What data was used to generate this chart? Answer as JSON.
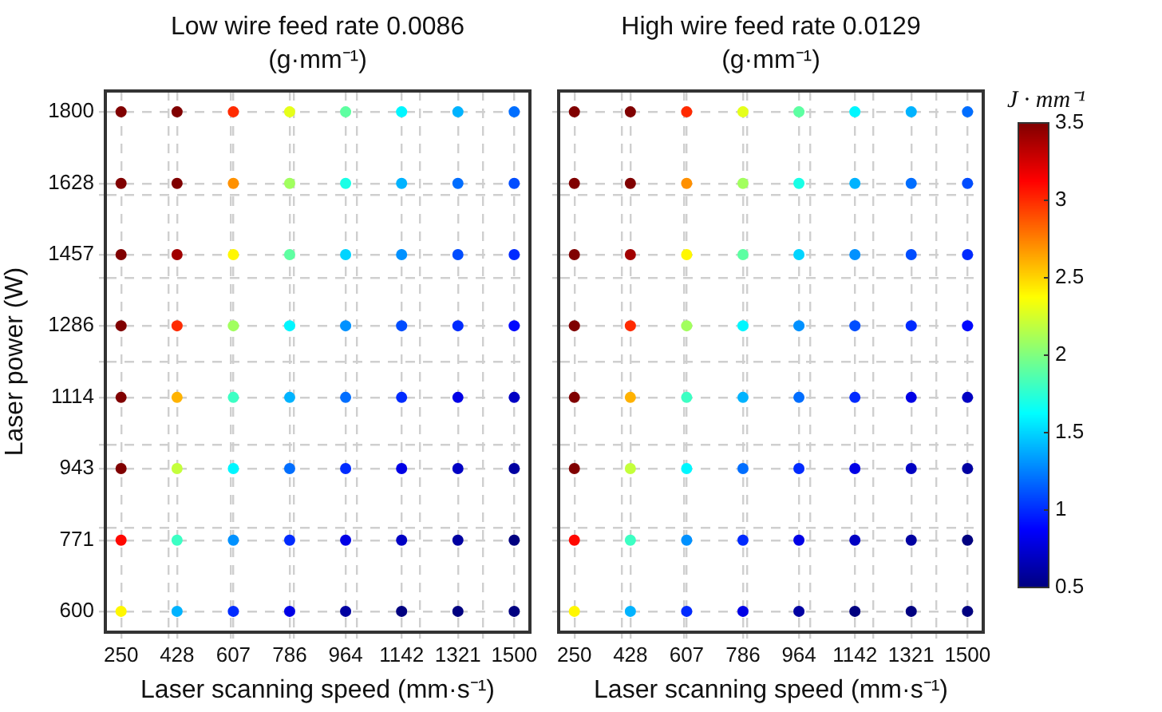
{
  "chart_data": [
    {
      "type": "scatter",
      "title": "Low wire feed rate 0.0086\n(g·mm⁻¹)",
      "xlabel": "Laser scanning speed (mm·s⁻¹)",
      "ylabel": "Laser power (W)",
      "marker": "circle",
      "grid": true,
      "xlim": [
        200,
        1550
      ],
      "xticks": [
        250,
        428,
        607,
        786,
        964,
        1142,
        1321,
        1500,
        {
          "value": 400,
          "label": null
        },
        {
          "value": 600,
          "label": null
        },
        {
          "value": 800,
          "label": null
        },
        {
          "value": 1000,
          "label": null
        },
        {
          "value": 1200,
          "label": null
        },
        {
          "value": 1400,
          "label": null
        }
      ],
      "ylim": [
        550,
        1850
      ],
      "yticks": [
        600,
        771,
        943,
        1114,
        1286,
        1457,
        1628,
        1800,
        {
          "value": 800,
          "label": null
        },
        {
          "value": 1000,
          "label": null
        },
        {
          "value": 1200,
          "label": null
        },
        {
          "value": 1400,
          "label": null
        },
        {
          "value": 1600,
          "label": null
        }
      ],
      "x": [
        250,
        250,
        250,
        250,
        250,
        250,
        250,
        250,
        428,
        428,
        428,
        428,
        428,
        428,
        428,
        428,
        607,
        607,
        607,
        607,
        607,
        607,
        607,
        607,
        786,
        786,
        786,
        786,
        786,
        786,
        786,
        786,
        964,
        964,
        964,
        964,
        964,
        964,
        964,
        964,
        1142,
        1142,
        1142,
        1142,
        1142,
        1142,
        1142,
        1142,
        1321,
        1321,
        1321,
        1321,
        1321,
        1321,
        1321,
        1321,
        1500,
        1500,
        1500,
        1500,
        1500,
        1500,
        1500,
        1500
      ],
      "values": [
        600,
        771,
        943,
        1114,
        1286,
        1457,
        1628,
        1800,
        600,
        771,
        943,
        1114,
        1286,
        1457,
        1628,
        1800,
        600,
        771,
        943,
        1114,
        1286,
        1457,
        1628,
        1800,
        600,
        771,
        943,
        1114,
        1286,
        1457,
        1628,
        1800,
        600,
        771,
        943,
        1114,
        1286,
        1457,
        1628,
        1800,
        600,
        771,
        943,
        1114,
        1286,
        1457,
        1628,
        1800,
        600,
        771,
        943,
        1114,
        1286,
        1457,
        1628,
        1800,
        600,
        771,
        943,
        1114,
        1286,
        1457,
        1628,
        1800
      ],
      "colors": [
        "#fff700",
        "#ff0800",
        "#800000",
        "#800000",
        "#800000",
        "#800000",
        "#800000",
        "#800000",
        "#00b3ff",
        "#3cffc4",
        "#c4ff3c",
        "#ffb300",
        "#ff2b00",
        "#a10000",
        "#800000",
        "#800000",
        "#002bff",
        "#0091ff",
        "#00f6ff",
        "#3cffc4",
        "#a1ff5e",
        "#fff700",
        "#ff9100",
        "#ff2b00",
        "#0000e6",
        "#002bff",
        "#006eff",
        "#00b3ff",
        "#00f6ff",
        "#5effa1",
        "#a1ff5e",
        "#e6ff1a",
        "#0000a1",
        "#0000e6",
        "#002bff",
        "#006eff",
        "#0091ff",
        "#00d4ff",
        "#1affe6",
        "#5effa1",
        "#000080",
        "#0000c4",
        "#0000e6",
        "#002bff",
        "#004dff",
        "#0091ff",
        "#00b3ff",
        "#00f6ff",
        "#000080",
        "#0000a1",
        "#0000c4",
        "#0000e6",
        "#002bff",
        "#004dff",
        "#006eff",
        "#00b3ff",
        "#000080",
        "#000080",
        "#0000a1",
        "#0000c4",
        "#0008ff",
        "#002bff",
        "#004dff",
        "#006eff"
      ]
    },
    {
      "type": "scatter",
      "title": "High wire feed rate 0.0129\n(g·mm⁻¹)",
      "xlabel": "Laser scanning speed (mm·s⁻¹)",
      "marker": "circle",
      "grid": true,
      "tick_labels": "x",
      "xlim": [
        200,
        1550
      ],
      "xticks": [
        250,
        428,
        607,
        786,
        964,
        1142,
        1321,
        1500,
        {
          "value": 400,
          "label": null
        },
        {
          "value": 600,
          "label": null
        },
        {
          "value": 800,
          "label": null
        },
        {
          "value": 1000,
          "label": null
        },
        {
          "value": 1200,
          "label": null
        },
        {
          "value": 1400,
          "label": null
        }
      ],
      "ylim": [
        550,
        1850
      ],
      "yticks": [
        600,
        771,
        943,
        1114,
        1286,
        1457,
        1628,
        1800,
        {
          "value": 800,
          "label": null
        },
        {
          "value": 1000,
          "label": null
        },
        {
          "value": 1200,
          "label": null
        },
        {
          "value": 1400,
          "label": null
        },
        {
          "value": 1600,
          "label": null
        }
      ],
      "clabel": "J · mm⁻¹",
      "clim": [
        0.5,
        3.5
      ],
      "cticks": [
        0.5,
        1,
        1.5,
        2,
        2.5,
        3,
        3.5
      ],
      "x": [
        250,
        250,
        250,
        250,
        250,
        250,
        250,
        250,
        428,
        428,
        428,
        428,
        428,
        428,
        428,
        428,
        607,
        607,
        607,
        607,
        607,
        607,
        607,
        607,
        786,
        786,
        786,
        786,
        786,
        786,
        786,
        786,
        964,
        964,
        964,
        964,
        964,
        964,
        964,
        964,
        1142,
        1142,
        1142,
        1142,
        1142,
        1142,
        1142,
        1142,
        1321,
        1321,
        1321,
        1321,
        1321,
        1321,
        1321,
        1321,
        1500,
        1500,
        1500,
        1500,
        1500,
        1500,
        1500,
        1500
      ],
      "values": [
        600,
        771,
        943,
        1114,
        1286,
        1457,
        1628,
        1800,
        600,
        771,
        943,
        1114,
        1286,
        1457,
        1628,
        1800,
        600,
        771,
        943,
        1114,
        1286,
        1457,
        1628,
        1800,
        600,
        771,
        943,
        1114,
        1286,
        1457,
        1628,
        1800,
        600,
        771,
        943,
        1114,
        1286,
        1457,
        1628,
        1800,
        600,
        771,
        943,
        1114,
        1286,
        1457,
        1628,
        1800,
        600,
        771,
        943,
        1114,
        1286,
        1457,
        1628,
        1800,
        600,
        771,
        943,
        1114,
        1286,
        1457,
        1628,
        1800
      ],
      "cvalues": [
        2.4,
        3.1,
        3.5,
        3.5,
        3.5,
        3.5,
        3.5,
        3.5,
        1.4,
        1.8,
        2.2,
        2.6,
        3.0,
        3.4,
        3.5,
        3.5,
        1.0,
        1.3,
        1.6,
        1.8,
        2.1,
        2.4,
        2.7,
        3.0,
        0.8,
        1.0,
        1.2,
        1.4,
        1.6,
        1.9,
        2.1,
        2.3,
        0.6,
        0.8,
        1.0,
        1.2,
        1.3,
        1.5,
        1.7,
        1.9,
        0.5,
        0.7,
        0.8,
        1.0,
        1.1,
        1.3,
        1.4,
        1.6,
        0.5,
        0.6,
        0.7,
        0.8,
        1.0,
        1.1,
        1.2,
        1.4,
        0.5,
        0.5,
        0.6,
        0.7,
        0.9,
        1.0,
        1.1,
        1.2
      ]
    }
  ]
}
